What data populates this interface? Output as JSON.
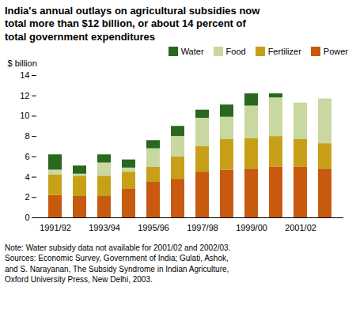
{
  "chart_data": {
    "type": "bar",
    "stacked": true,
    "title": "India's annual outlays on agricultural subsidies now\ntotal more than $12 billion, or about 14 percent of\ntotal government expenditures",
    "ylabel": "$ billion",
    "categories": [
      "1991/92",
      null,
      "1993/94",
      null,
      "1995/96",
      null,
      "1997/98",
      null,
      "1999/00",
      null,
      "2001/02",
      null
    ],
    "series": [
      {
        "name": "Power",
        "color": "#c85a10",
        "values": [
          2.2,
          2.1,
          2.1,
          2.8,
          3.5,
          3.8,
          4.5,
          4.7,
          4.8,
          5.0,
          5.0,
          4.8
        ]
      },
      {
        "name": "Fertilizer",
        "color": "#c8a018",
        "values": [
          2.0,
          2.0,
          2.0,
          1.7,
          1.5,
          2.2,
          2.5,
          3.0,
          3.0,
          3.0,
          2.7,
          2.5
        ]
      },
      {
        "name": "Food",
        "color": "#c8d8a0",
        "values": [
          0.5,
          0.2,
          1.3,
          0.4,
          1.8,
          2.0,
          2.8,
          2.2,
          3.2,
          3.8,
          3.6,
          4.4
        ]
      },
      {
        "name": "Water",
        "color": "#2a6820",
        "values": [
          1.5,
          0.8,
          0.8,
          0.8,
          0.8,
          1.0,
          0.8,
          1.2,
          1.2,
          0.4,
          0.0,
          0.0
        ]
      }
    ],
    "ylim": [
      0,
      14
    ],
    "yticks": [
      0,
      2,
      4,
      6,
      8,
      10,
      12,
      14
    ],
    "grid": false,
    "legend": "upper right",
    "annotations": [
      "Note: Water subsidy data not available for 2001/02 and 2002/03.",
      "Sources: Economic Survey, Government of India; Gulati, Ashok,",
      "and S. Narayanan, The Subsidy Syndrome in Indian Agriculture,",
      "Oxford University Press, New Delhi, 2003."
    ]
  }
}
